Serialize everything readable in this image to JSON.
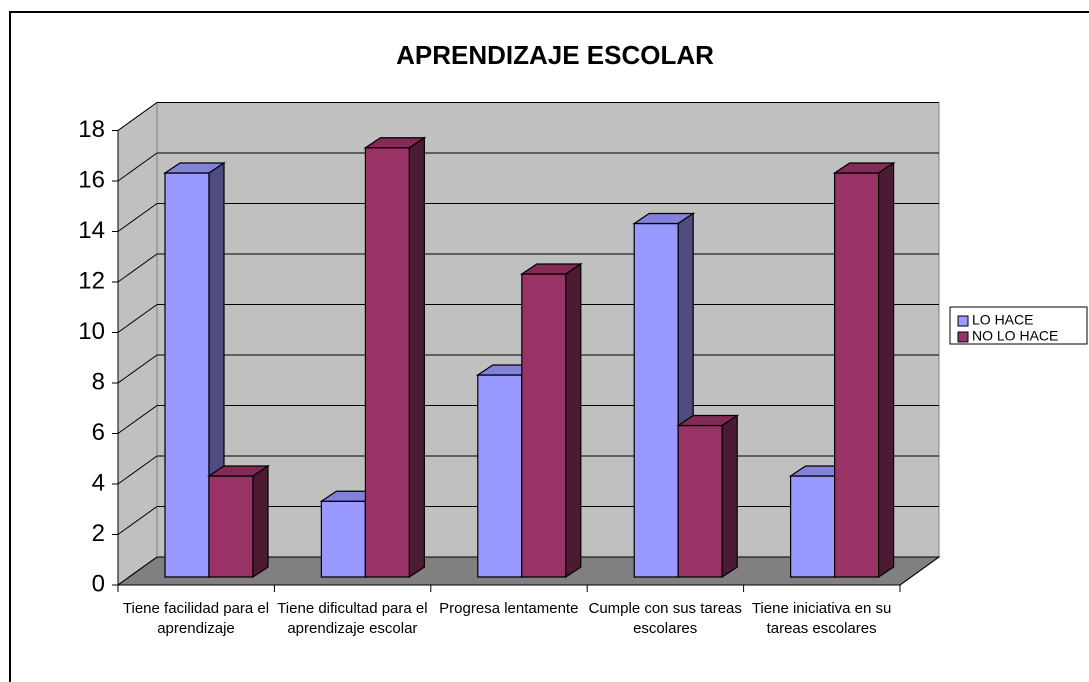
{
  "chart_data": {
    "type": "bar3d",
    "title": "APRENDIZAJE ESCOLAR",
    "categories": [
      "Tiene facilidad para el aprendizaje",
      "Tiene dificultad para el aprendizaje escolar",
      "Progresa lentamente",
      "Cumple con sus tareas escolares",
      "Tiene iniciativa en su tareas escolares"
    ],
    "series": [
      {
        "name": "LO HACE",
        "color": "#9999ff",
        "values": [
          16,
          3,
          8,
          14,
          4
        ]
      },
      {
        "name": "NO LO HACE",
        "color": "#993366",
        "values": [
          4,
          17,
          12,
          6,
          16
        ]
      }
    ],
    "ylim": [
      0,
      18
    ],
    "yticks": [
      0,
      2,
      4,
      6,
      8,
      10,
      12,
      14,
      16,
      18
    ],
    "grid": true,
    "legend": "right"
  }
}
